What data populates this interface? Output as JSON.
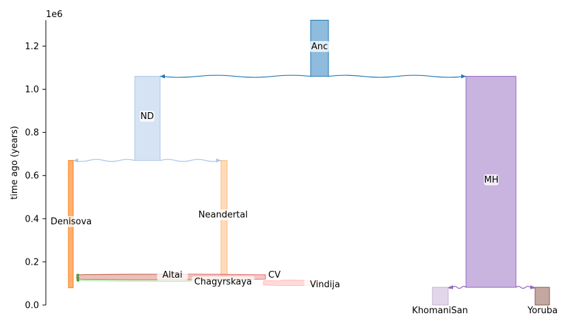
{
  "chart_data": {
    "type": "demography",
    "ylabel": "time ago (years)",
    "y_offset_label": "1e6",
    "ylim": [
      0,
      1320000
    ],
    "yticks": [
      0.0,
      0.2,
      0.4,
      0.6,
      0.8,
      1.0,
      1.2
    ],
    "tick_labels": [
      "0.0",
      "0.2",
      "0.4",
      "0.6",
      "0.8",
      "1.0",
      "1.2"
    ],
    "demes": [
      {
        "name": "Anc",
        "start_time": 1320000,
        "end_time": 1060000,
        "color": "#1f77b4",
        "fill": "#8fbbdc"
      },
      {
        "name": "ND",
        "start_time": 1060000,
        "end_time": 670000,
        "color": "#aec7e8",
        "fill": "#d6e3f4"
      },
      {
        "name": "MH",
        "start_time": 1060000,
        "end_time": 82000,
        "color": "#9467bd",
        "fill": "#c9b3df"
      },
      {
        "name": "Denisova",
        "start_time": 670000,
        "end_time": 80000,
        "color": "#ff7f0e",
        "fill": "#ffb074"
      },
      {
        "name": "Neandertal",
        "start_time": 670000,
        "end_time": 130000,
        "color": "#ffbb78",
        "fill": "#ffdbbc"
      },
      {
        "name": "Altai",
        "start_time": 145000,
        "end_time": 115000,
        "color": "#2ca02c",
        "fill": "#c5e5c5"
      },
      {
        "name": "Chagyrskaya",
        "start_time": 135000,
        "end_time": 110000,
        "color": "#98df8a",
        "fill": "#d4f1ce"
      },
      {
        "name": "CV",
        "start_time": 150000,
        "end_time": 110000,
        "color": "#d62728",
        "fill": "#f2b7b7"
      },
      {
        "name": "Vindija",
        "start_time": 115000,
        "end_time": 90000,
        "color": "#ff9896",
        "fill": "#ffd1d0"
      },
      {
        "name": "KhomaniSan",
        "start_time": 82000,
        "end_time": 0,
        "color": "#c5b0d5",
        "fill": "#e2d7ea"
      },
      {
        "name": "Yoruba",
        "start_time": 82000,
        "end_time": 0,
        "color": "#8c564b",
        "fill": "#c4a7a1"
      }
    ],
    "splits": [
      {
        "parent": "Anc",
        "children": [
          "ND",
          "MH"
        ],
        "time": 1060000,
        "color": "#1f77b4"
      },
      {
        "parent": "ND",
        "children": [
          "Denisova",
          "Neandertal"
        ],
        "time": 670000,
        "color": "#aec7e8"
      },
      {
        "parent": "MH",
        "children": [
          "KhomaniSan",
          "Yoruba"
        ],
        "time": 82000,
        "color": "#9467bd"
      }
    ]
  }
}
